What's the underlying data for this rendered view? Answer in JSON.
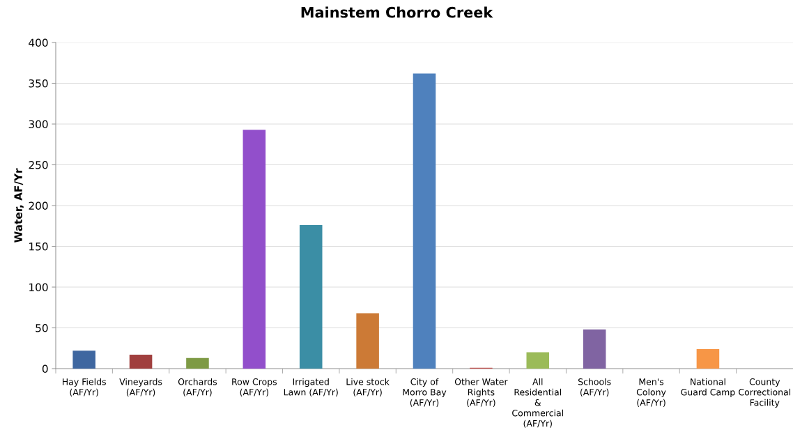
{
  "chart_data": {
    "type": "bar",
    "title": "Mainstem Chorro Creek",
    "ylabel": "Water, AF/Yr",
    "categories": [
      "Hay Fields\n(AF/Yr)",
      "Vineyards\n(AF/Yr)",
      "Orchards\n(AF/Yr)",
      "Row Crops\n(AF/Yr)",
      "Irrigated\nLawn (AF/Yr)",
      "Live stock\n(AF/Yr)",
      "City of\nMorro Bay\n(AF/Yr)",
      "Other Water\nRights\n(AF/Yr)",
      "All\nResidential\n&\nCommercial\n(AF/Yr)",
      "Schools\n(AF/Yr)",
      "Men's\nColony\n(AF/Yr)",
      "National\nGuard Camp",
      "County\nCorrectional\nFacility"
    ],
    "values": [
      22,
      17,
      13,
      293,
      176,
      68,
      362,
      1,
      20,
      48,
      0,
      24,
      0
    ],
    "colors": [
      "#3f67a0",
      "#a03f3e",
      "#7e9a45",
      "#924fcb",
      "#3b8ea5",
      "#cc7a36",
      "#4f81bd",
      "#c0504d",
      "#9bbb59",
      "#8064a2",
      "#4bacc6",
      "#f79646",
      "#2c4d75"
    ],
    "ylim": [
      0,
      400
    ],
    "yticks": [
      0,
      50,
      100,
      150,
      200,
      250,
      300,
      350,
      400
    ],
    "grid": "y",
    "legend": false
  }
}
